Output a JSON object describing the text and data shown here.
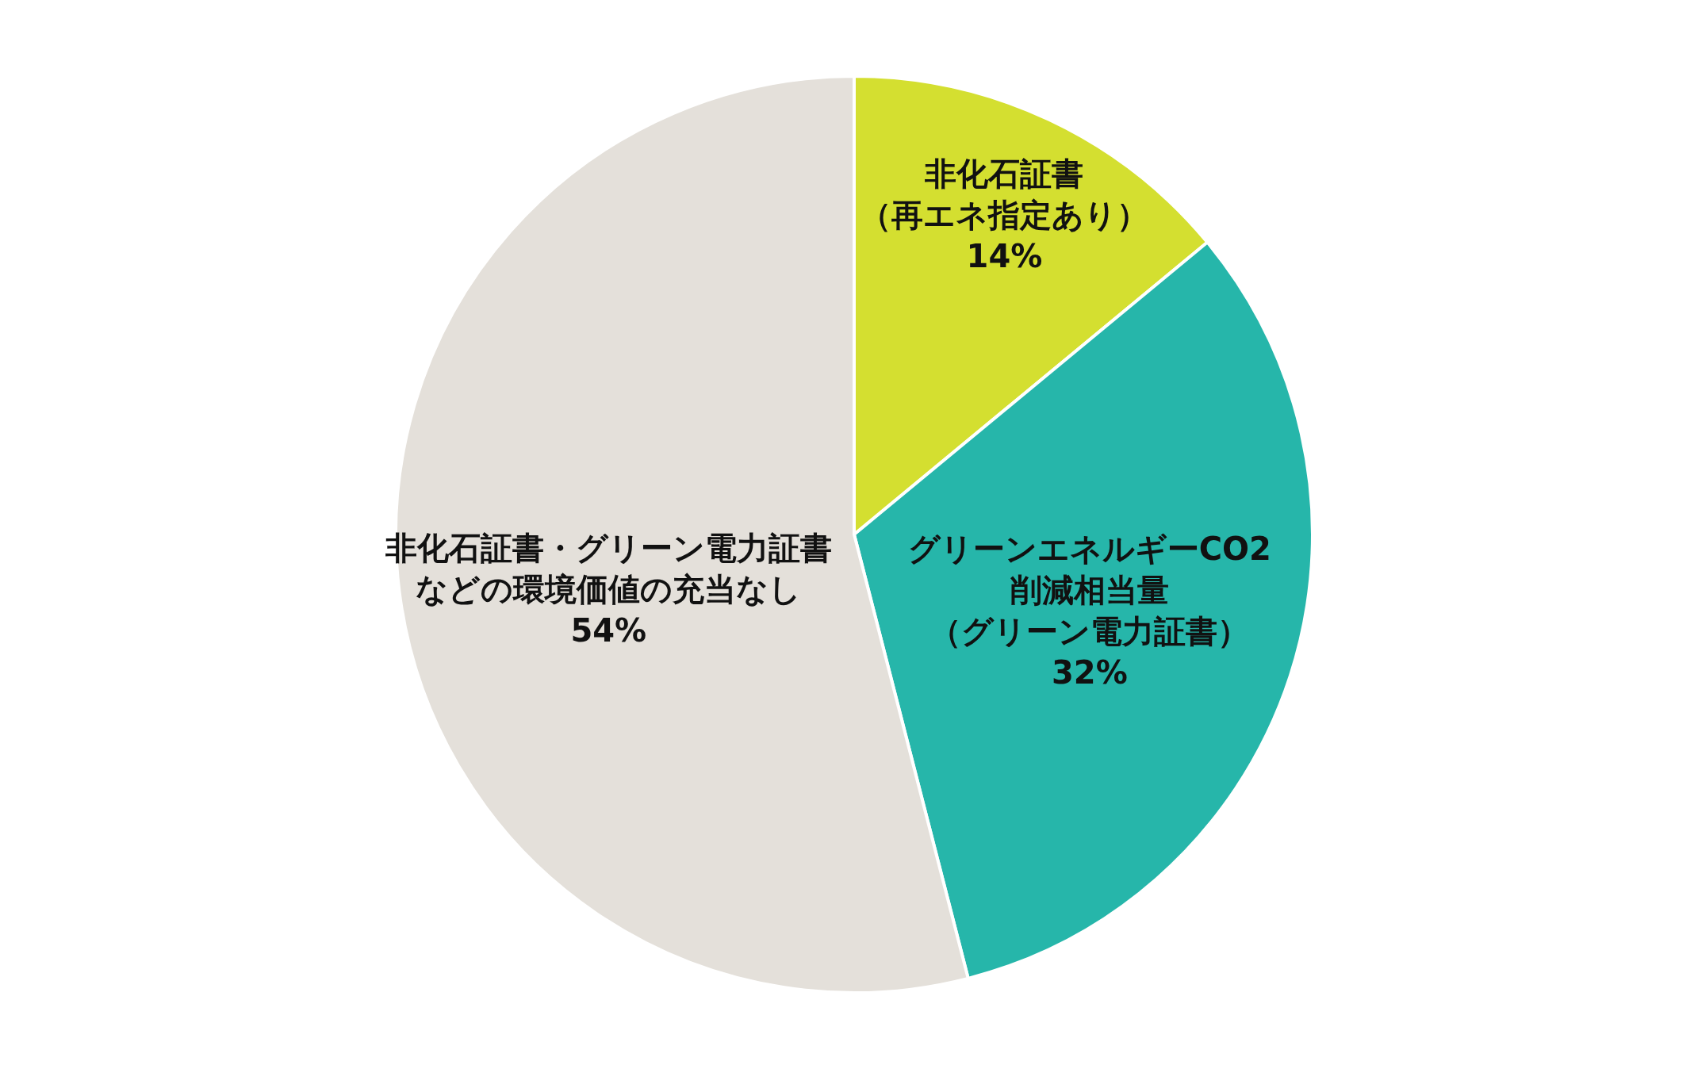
{
  "chart_data": {
    "type": "pie",
    "categories": [
      "非化石証書（再エネ指定あり）",
      "グリーンエネルギーCO2削減相当量（グリーン電力証書）",
      "非化石証書・グリーン電力証書などの環境価値の充当なし"
    ],
    "values": [
      14,
      32,
      54
    ],
    "value_labels": [
      "14%",
      "32%",
      "54%"
    ],
    "colors": [
      "#d4df30",
      "#26b6aa",
      "#e4e0da"
    ],
    "legend": false
  }
}
